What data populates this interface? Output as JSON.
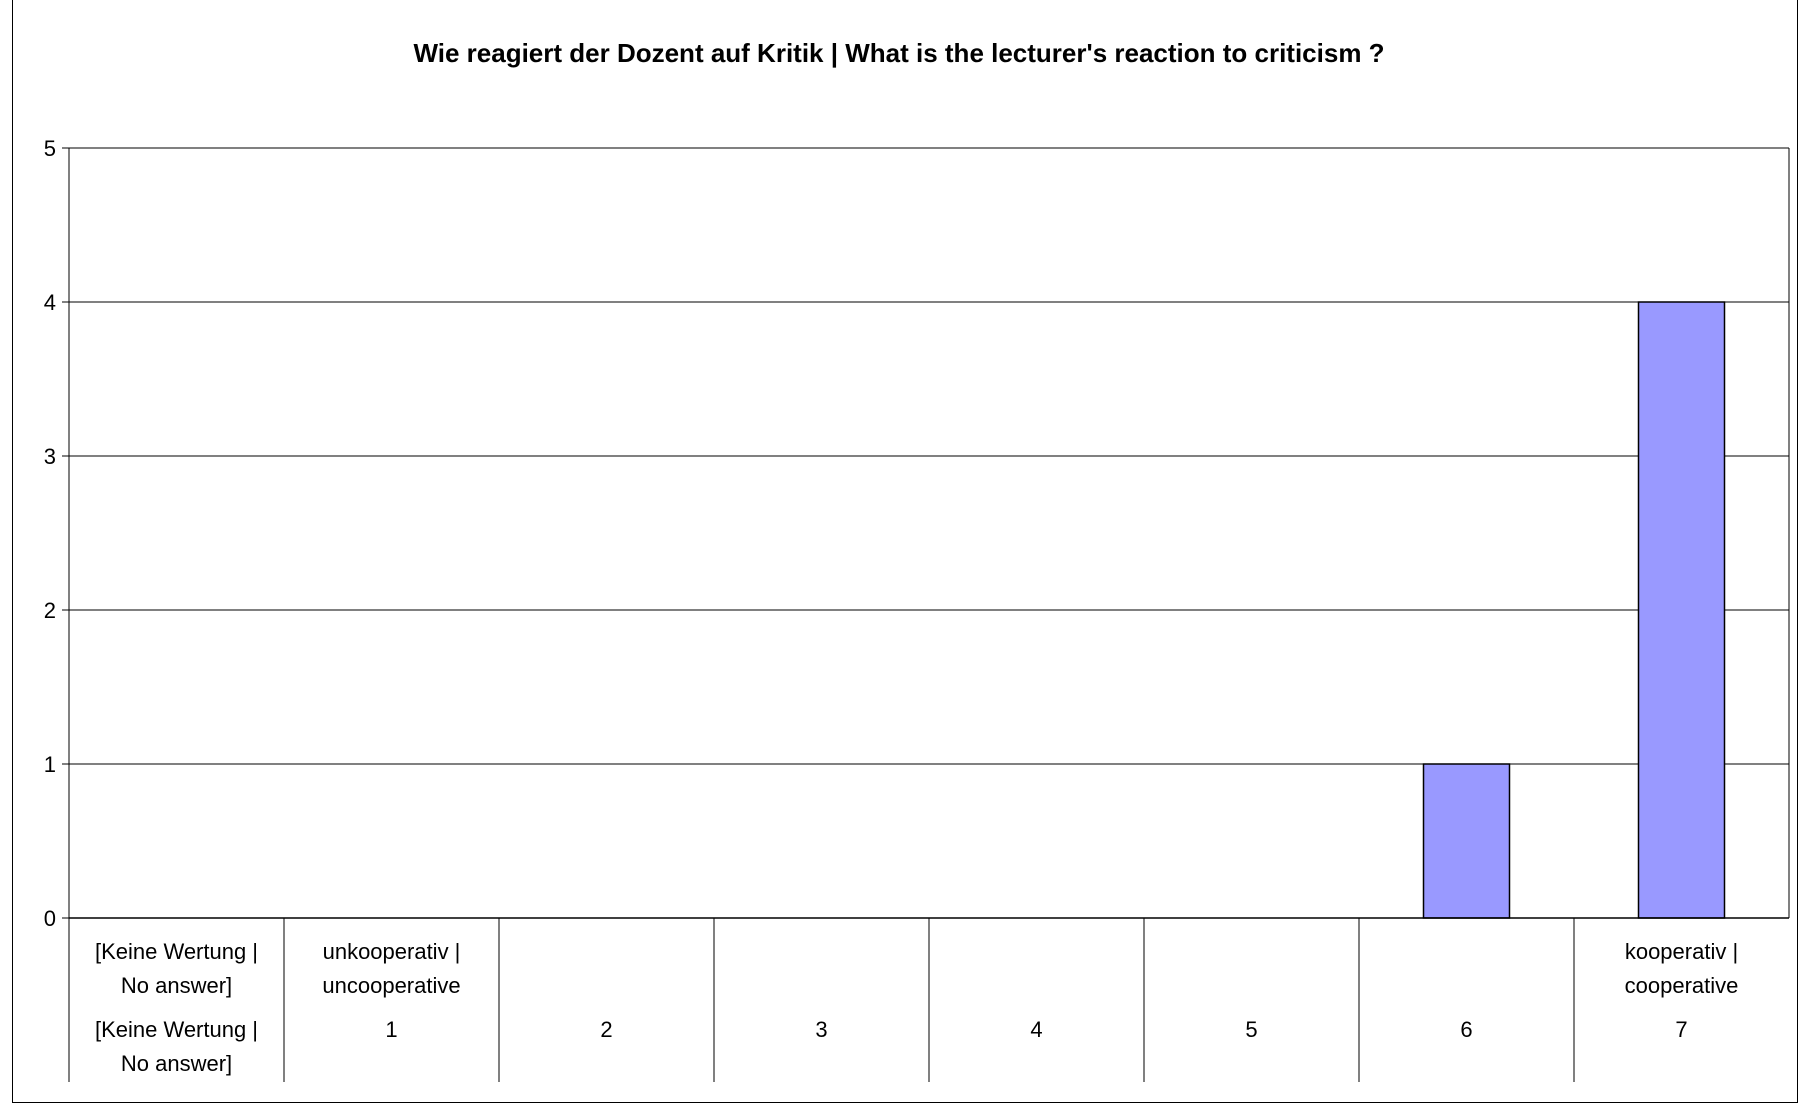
{
  "chart_data": {
    "type": "bar",
    "title": "Wie reagiert der Dozent auf Kritik | What is the lecturer's reaction to criticism ?",
    "xlabel": "",
    "ylabel": "",
    "ylim": [
      0,
      5
    ],
    "yticks": [
      0,
      1,
      2,
      3,
      4,
      5
    ],
    "grid": true,
    "legend": "none",
    "categories": [
      {
        "label_top": [
          "[Keine Wertung |",
          "No answer]"
        ],
        "label_bottom": [
          "[Keine Wertung |",
          "No answer]"
        ]
      },
      {
        "label_top": [
          "unkooperativ |",
          "uncooperative"
        ],
        "label_bottom": [
          "1"
        ]
      },
      {
        "label_top": [],
        "label_bottom": [
          "2"
        ]
      },
      {
        "label_top": [],
        "label_bottom": [
          "3"
        ]
      },
      {
        "label_top": [],
        "label_bottom": [
          "4"
        ]
      },
      {
        "label_top": [],
        "label_bottom": [
          "5"
        ]
      },
      {
        "label_top": [],
        "label_bottom": [
          "6"
        ]
      },
      {
        "label_top": [
          "kooperativ |",
          "cooperative"
        ],
        "label_bottom": [
          "7"
        ]
      }
    ],
    "values": [
      0,
      0,
      0,
      0,
      0,
      0,
      1,
      4
    ],
    "colors": {
      "bar": "#9999ff",
      "bar_stroke": "#000000",
      "grid": "#000000"
    }
  }
}
